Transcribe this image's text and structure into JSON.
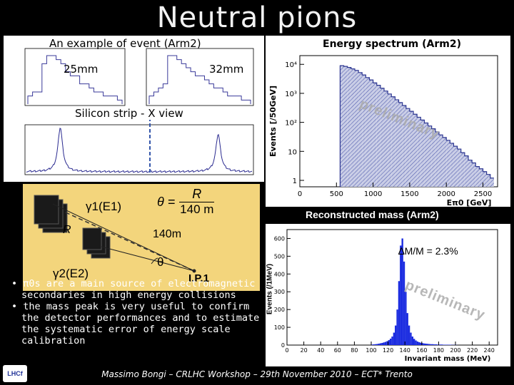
{
  "slide": {
    "title": "Neutral pions",
    "footer": "Massimo Bongi – CRLHC Workshop – 29th November 2010 – ECT* Trento",
    "logo_text": "LHCf"
  },
  "event_panel": {
    "title": "An example of event (Arm2)",
    "label_25": "25mm",
    "label_32": "32mm",
    "subtitle": "Silicon strip - X  view"
  },
  "energy_panel": {
    "title": "Energy spectrum (Arm2)",
    "watermark": "preliminary"
  },
  "mass_panel": {
    "title": "Reconstructed mass (Arm2)",
    "resolution": "∆M/M = 2.3%",
    "watermark": "preliminary"
  },
  "diagram": {
    "gamma1": "γ1(E1)",
    "gamma2": "γ2(E2)",
    "R": "R",
    "distance": "140m",
    "theta": "θ",
    "ip": "I.P.1",
    "formula_lhs": "θ =",
    "formula_num": "R",
    "formula_den": "140 m"
  },
  "bullets": [
    "• π0s are a main source of electromagnetic secondaries in high energy collisions",
    "• the mass peak is very useful to confirm the detector performances and to estimate the systematic error of energy scale calibration"
  ],
  "chart_data": [
    {
      "type": "bar",
      "title": "Energy spectrum (Arm2)",
      "xlabel": "Eπ0 [GeV]",
      "ylabel": "Events [/50GeV]",
      "yscale": "log",
      "xlim": [
        0,
        2700
      ],
      "ylim": [
        0.6,
        20000
      ],
      "x_ticks": [
        0,
        500,
        1000,
        1500,
        2000,
        2500
      ],
      "y_ticks": [
        1,
        10,
        100,
        1000,
        10000
      ],
      "y_tick_labels": [
        "1",
        "10",
        "10²",
        "10³",
        "10⁴"
      ],
      "x": [
        550,
        600,
        650,
        700,
        750,
        800,
        850,
        900,
        950,
        1000,
        1050,
        1100,
        1150,
        1200,
        1250,
        1300,
        1350,
        1400,
        1450,
        1500,
        1550,
        1600,
        1650,
        1700,
        1750,
        1800,
        1850,
        1900,
        1950,
        2000,
        2050,
        2100,
        2150,
        2200,
        2250,
        2300,
        2350,
        2400,
        2450,
        2500,
        2550,
        2600
      ],
      "values": [
        9000,
        8500,
        7800,
        7000,
        6200,
        5200,
        4300,
        3500,
        2900,
        2300,
        1900,
        1500,
        1200,
        950,
        760,
        600,
        480,
        380,
        300,
        240,
        190,
        150,
        120,
        95,
        75,
        60,
        47,
        37,
        30,
        24,
        19,
        15,
        12,
        9,
        7,
        5,
        4,
        3,
        2.5,
        2,
        1.6,
        1.2
      ]
    },
    {
      "type": "bar",
      "title": "Reconstructed mass (Arm2)",
      "xlabel": "Invariant mass (MeV)",
      "ylabel": "Events (/1MeV)",
      "xlim": [
        0,
        250
      ],
      "ylim": [
        0,
        650
      ],
      "x_ticks": [
        0,
        20,
        40,
        60,
        80,
        100,
        120,
        140,
        160,
        180,
        200,
        220,
        240
      ],
      "y_ticks": [
        0,
        100,
        200,
        300,
        400,
        500,
        600
      ],
      "x": [
        100,
        102,
        104,
        106,
        108,
        110,
        112,
        114,
        116,
        118,
        120,
        122,
        124,
        126,
        128,
        130,
        132,
        134,
        136,
        138,
        140,
        142,
        144,
        146,
        148,
        150,
        152,
        154,
        156,
        158,
        160,
        162,
        164,
        166,
        168,
        170,
        172,
        174,
        176,
        178,
        180,
        185,
        190,
        195,
        200
      ],
      "values": [
        3,
        4,
        5,
        6,
        8,
        10,
        12,
        15,
        18,
        22,
        28,
        36,
        48,
        70,
        110,
        200,
        360,
        560,
        600,
        470,
        300,
        180,
        110,
        70,
        48,
        35,
        26,
        20,
        16,
        13,
        11,
        9,
        8,
        7,
        6,
        5,
        5,
        4,
        4,
        3,
        3,
        2,
        2,
        1,
        1
      ]
    },
    {
      "type": "bar",
      "title": "An example of event (Arm2) - 25mm calorimeter",
      "values": [
        2,
        3,
        3,
        10,
        12,
        12,
        11,
        10,
        8,
        7,
        7,
        5,
        5,
        4,
        3,
        3,
        2,
        2,
        2,
        1
      ]
    },
    {
      "type": "bar",
      "title": "An example of event (Arm2) - 32mm calorimeter",
      "values": [
        2,
        3,
        4,
        5,
        12,
        12,
        11,
        10,
        9,
        8,
        7,
        7,
        6,
        5,
        4,
        4,
        3,
        2,
        2,
        2,
        1,
        1
      ]
    },
    {
      "type": "line",
      "title": "Silicon strip - X view",
      "peaks": [
        {
          "position": 60,
          "height": 1.0
        },
        {
          "position": 340,
          "height": 0.85
        }
      ]
    }
  ]
}
